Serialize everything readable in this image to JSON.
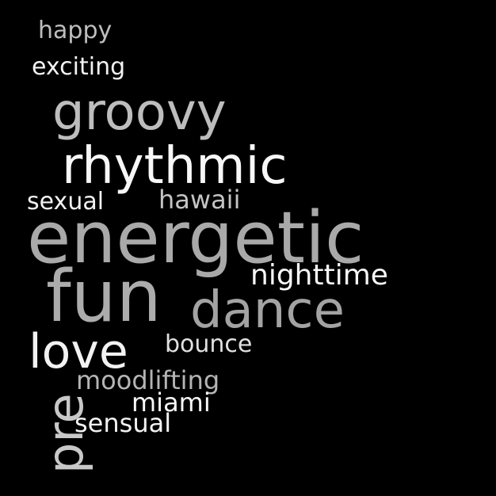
{
  "cloud": {
    "background": "#000000",
    "words": {
      "happy": {
        "text": "happy",
        "color": "#bdbdbd"
      },
      "exciting": {
        "text": "exciting",
        "color": "#f2f2f2"
      },
      "groovy": {
        "text": "groovy",
        "color": "#bdbdbd"
      },
      "rhythmic": {
        "text": "rhythmic",
        "color": "#f7f7f7"
      },
      "sexual": {
        "text": "sexual",
        "color": "#f2f2f2"
      },
      "hawaii": {
        "text": "hawaii",
        "color": "#c4c4c4"
      },
      "energetic": {
        "text": "energetic",
        "color": "#a9a9a9"
      },
      "nighttime": {
        "text": "nighttime",
        "color": "#f7f7f7"
      },
      "fun": {
        "text": "fun",
        "color": "#acacac"
      },
      "dance": {
        "text": "dance",
        "color": "#a3a3a3"
      },
      "love": {
        "text": "love",
        "color": "#f2f2f2"
      },
      "bounce": {
        "text": "bounce",
        "color": "#e0e0e0"
      },
      "moodlifting": {
        "text": "moodlifting",
        "color": "#b5b5b5"
      },
      "miami": {
        "text": "miami",
        "color": "#f7f7f7"
      },
      "sensual": {
        "text": "sensual",
        "color": "#f2f2f2"
      },
      "pre": {
        "text": "pre",
        "color": "#c8c8c8"
      }
    }
  }
}
